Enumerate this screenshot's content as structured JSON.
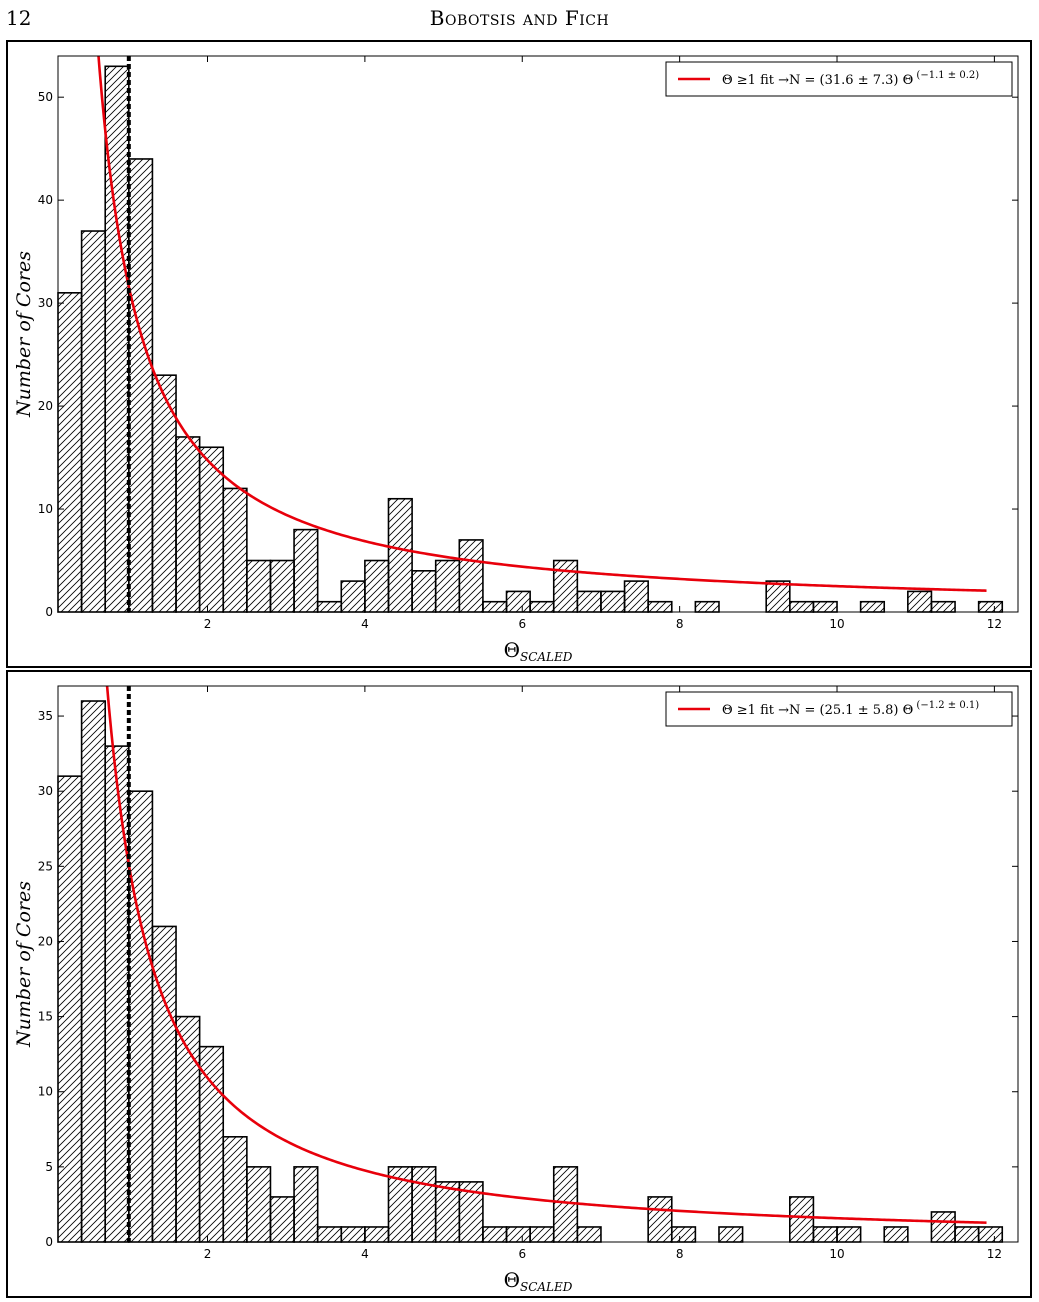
{
  "header": {
    "page_number": "12",
    "running_title": "Bobotsis and Fich"
  },
  "chart_data": [
    {
      "type": "bar",
      "bin_width": 0.3,
      "bin_start": 0.1,
      "values": [
        31,
        37,
        53,
        44,
        23,
        17,
        16,
        12,
        5,
        5,
        8,
        1,
        3,
        5,
        11,
        4,
        5,
        7,
        1,
        2,
        1,
        5,
        2,
        2,
        3,
        1,
        0,
        1,
        0,
        0,
        3,
        1,
        1,
        0,
        1,
        0,
        2,
        1,
        0,
        1
      ],
      "xlim": [
        0.1,
        12.3
      ],
      "ylim": [
        0,
        54
      ],
      "xticks": [
        2,
        4,
        6,
        8,
        10,
        12
      ],
      "yticks": [
        0,
        10,
        20,
        30,
        40,
        50
      ],
      "xlabel": "Θ",
      "xlabel_sub": "SCALED",
      "ylabel": "Number of Cores",
      "vline_x": 1.0,
      "fit": {
        "A": 31.6,
        "k": -1.1,
        "x_range": [
          0.1,
          11.9
        ],
        "color": "#e8000b"
      },
      "legend": {
        "text": "Θ ≥1 fit →N = (31.6 ± 7.3) Θ",
        "exponent": "(−1.1 ± 0.2)",
        "position": "top-right"
      }
    },
    {
      "type": "bar",
      "bin_width": 0.3,
      "bin_start": 0.1,
      "values": [
        31,
        36,
        33,
        30,
        21,
        15,
        13,
        7,
        5,
        3,
        5,
        1,
        1,
        1,
        5,
        5,
        4,
        4,
        1,
        1,
        1,
        5,
        1,
        0,
        0,
        3,
        1,
        0,
        1,
        0,
        0,
        3,
        1,
        1,
        0,
        1,
        0,
        2,
        1,
        1
      ],
      "xlim": [
        0.1,
        12.3
      ],
      "ylim": [
        0,
        37
      ],
      "xticks": [
        2,
        4,
        6,
        8,
        10,
        12
      ],
      "yticks": [
        0,
        5,
        10,
        15,
        20,
        25,
        30,
        35
      ],
      "xlabel": "Θ",
      "xlabel_sub": "SCALED",
      "ylabel": "Number of Cores",
      "vline_x": 1.0,
      "fit": {
        "A": 25.1,
        "k": -1.2,
        "x_range": [
          0.1,
          11.9
        ],
        "color": "#e8000b"
      },
      "legend": {
        "text": "Θ ≥1 fit →N = (25.1 ± 5.8) Θ",
        "exponent": "(−1.2 ± 0.1)",
        "position": "top-right"
      }
    }
  ]
}
